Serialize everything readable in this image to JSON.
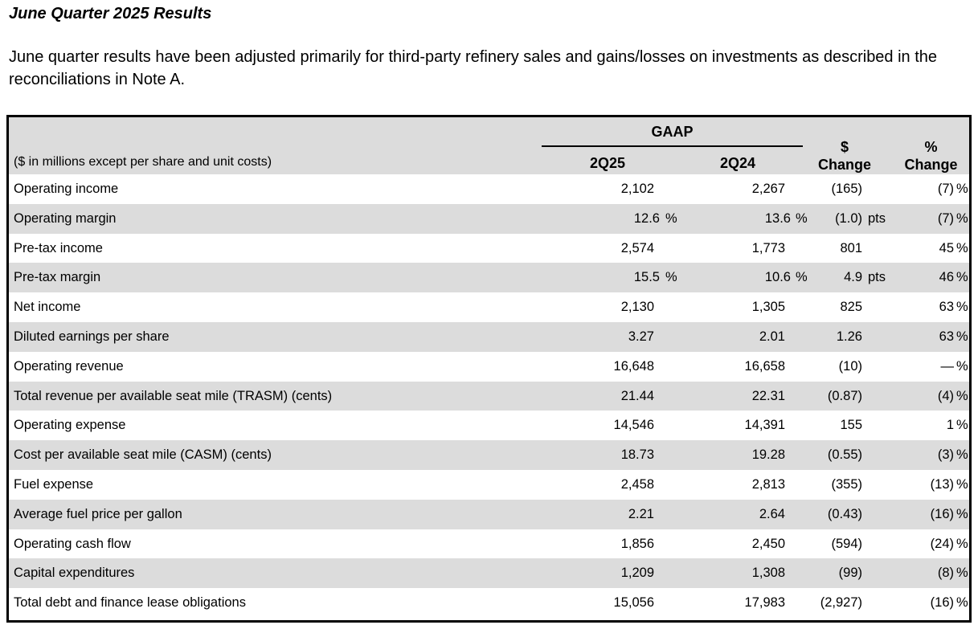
{
  "title": "June Quarter 2025 Results",
  "intro": "June quarter results have been adjusted primarily for third-party refinery sales and gains/losses on investments as described in the reconciliations in Note A.",
  "table": {
    "caption": "($ in millions except per share and unit costs)",
    "group_header": "GAAP",
    "col_q1": "2Q25",
    "col_q2": "2Q24",
    "col_dollar_top": "$",
    "col_dollar_bottom": "Change",
    "col_pct_top": "%",
    "col_pct_bottom": "Change",
    "rows": [
      {
        "label": "Operating income",
        "q1": "2,102",
        "q2": "2,267",
        "chg": "(165)",
        "pts": "",
        "pct": "(7)",
        "pctsign": "%"
      },
      {
        "label": "Operating margin",
        "q1": "12.6",
        "q1s": "%",
        "q2": "13.6",
        "q2s": "%",
        "chg": "(1.0)",
        "pts": "pts",
        "pct": "(7)",
        "pctsign": "%"
      },
      {
        "label": "Pre-tax income",
        "q1": "2,574",
        "q2": "1,773",
        "chg": "801",
        "pts": "",
        "pct": "45",
        "pctsign": "%"
      },
      {
        "label": "Pre-tax margin",
        "q1": "15.5",
        "q1s": "%",
        "q2": "10.6",
        "q2s": "%",
        "chg": "4.9",
        "pts": "pts",
        "pct": "46",
        "pctsign": "%"
      },
      {
        "label": "Net income",
        "q1": "2,130",
        "q2": "1,305",
        "chg": "825",
        "pts": "",
        "pct": "63",
        "pctsign": "%"
      },
      {
        "label": "Diluted earnings per share",
        "q1": "3.27",
        "q2": "2.01",
        "chg": "1.26",
        "pts": "",
        "pct": "63",
        "pctsign": "%"
      },
      {
        "label": "Operating revenue",
        "q1": "16,648",
        "q2": "16,658",
        "chg": "(10)",
        "pts": "",
        "pct": "—",
        "pctsign": "%"
      },
      {
        "label": "Total revenue per available seat mile (TRASM) (cents)",
        "q1": "21.44",
        "q2": "22.31",
        "chg": "(0.87)",
        "pts": "",
        "pct": "(4)",
        "pctsign": "%"
      },
      {
        "label": "Operating expense",
        "q1": "14,546",
        "q2": "14,391",
        "chg": "155",
        "pts": "",
        "pct": "1",
        "pctsign": "%"
      },
      {
        "label": "Cost per available seat mile (CASM) (cents)",
        "q1": "18.73",
        "q2": "19.28",
        "chg": "(0.55)",
        "pts": "",
        "pct": "(3)",
        "pctsign": "%"
      },
      {
        "label": "Fuel expense",
        "q1": "2,458",
        "q2": "2,813",
        "chg": "(355)",
        "pts": "",
        "pct": "(13)",
        "pctsign": "%"
      },
      {
        "label": "Average fuel price per gallon",
        "q1": "2.21",
        "q2": "2.64",
        "chg": "(0.43)",
        "pts": "",
        "pct": "(16)",
        "pctsign": "%"
      },
      {
        "label": "Operating cash flow",
        "q1": "1,856",
        "q2": "2,450",
        "chg": "(594)",
        "pts": "",
        "pct": "(24)",
        "pctsign": "%"
      },
      {
        "label": "Capital expenditures",
        "q1": "1,209",
        "q2": "1,308",
        "chg": "(99)",
        "pts": "",
        "pct": "(8)",
        "pctsign": "%"
      },
      {
        "label": "Total debt and finance lease obligations",
        "q1": "15,056",
        "q2": "17,983",
        "chg": "(2,927)",
        "pts": "",
        "pct": "(16)",
        "pctsign": "%"
      }
    ]
  }
}
